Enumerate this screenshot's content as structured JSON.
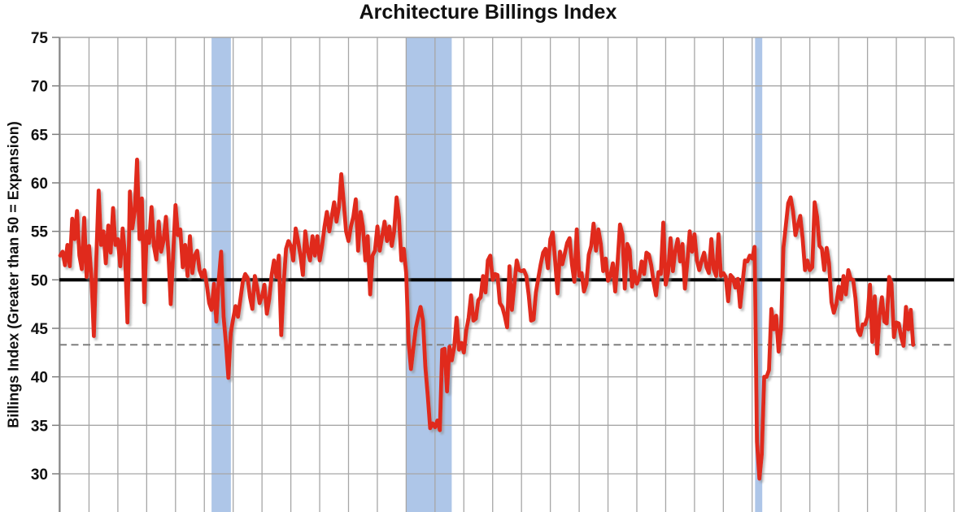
{
  "header": {
    "title": "Architecture Billings Index"
  },
  "chart_data": {
    "type": "line",
    "title": "Architecture Billings Index",
    "xlabel": "",
    "ylabel": "Billings Index (Greater than 50 = Expansion)",
    "ylim": [
      26,
      75
    ],
    "yticks": [
      75,
      70,
      65,
      60,
      55,
      50,
      45,
      40,
      35,
      30
    ],
    "x_axis": {
      "start_year": 1996,
      "end_year": 2027,
      "gridlines_every_years": 1,
      "tick_labels_visible": false
    },
    "grid": true,
    "legend": "none",
    "reference_lines": [
      {
        "name": "expansion-threshold",
        "value": 50,
        "style": "solid",
        "color": "#000000"
      },
      {
        "name": "latest-reading-level",
        "value": 43.3,
        "style": "dashed",
        "color": "#7f7f7f"
      }
    ],
    "recessions": [
      {
        "name": "2001-recession",
        "start": 2001.25,
        "end": 2001.92
      },
      {
        "name": "2007-2009-recession",
        "start": 2008.0,
        "end": 2009.58
      },
      {
        "name": "2020-recession",
        "start": 2020.1,
        "end": 2020.35
      }
    ],
    "colors": {
      "line": "#e0291e",
      "recession_band": "#aec6e8",
      "grid": "#a6a6a6",
      "axis": "#7f7f7f",
      "threshold": "#000000",
      "dashed": "#7f7f7f"
    },
    "series": [
      {
        "name": "Architecture Billings Index",
        "frequency": "monthly",
        "start": "1996-01",
        "end": "2025-08",
        "values_by_year": {
          "1996": [
            52.5,
            52.9,
            51.5,
            53.6,
            51.4,
            56.3,
            54.2,
            57.1,
            52.5,
            51.1,
            56.4,
            50.3
          ],
          "1997": [
            53.5,
            50.3,
            44.2,
            52.0,
            59.2,
            53.6,
            55.0,
            51.7,
            55.6,
            52.8,
            57.4,
            53.6
          ],
          "1998": [
            54.2,
            51.4,
            55.3,
            52.4,
            45.6,
            59.1,
            55.3,
            57.0,
            62.4,
            54.2,
            58.4,
            47.7
          ],
          "1999": [
            55.0,
            53.8,
            57.5,
            53.5,
            52.1,
            56.0,
            52.9,
            54.0,
            56.5,
            53.0,
            47.5,
            52.5
          ],
          "2000": [
            57.7,
            54.6,
            55.2,
            51.3,
            53.6,
            50.4,
            54.5,
            50.7,
            52.5,
            53.0,
            51.0,
            50.3
          ],
          "2001": [
            51.0,
            49.5,
            47.6,
            46.9,
            49.6,
            45.7,
            50.0,
            52.9,
            46.2,
            43.5,
            39.9,
            44.5
          ],
          "2002": [
            46.0,
            47.3,
            46.2,
            48.0,
            49.8,
            50.6,
            50.2,
            48.2,
            47.0,
            50.4,
            49.2,
            47.6
          ],
          "2003": [
            48.3,
            49.5,
            46.5,
            48.0,
            50.5,
            52.0,
            50.3,
            52.5,
            44.3,
            49.5,
            53.2,
            54.0
          ],
          "2004": [
            53.5,
            52.0,
            55.3,
            54.0,
            52.5,
            50.5,
            55.0,
            53.0,
            52.0,
            54.5,
            52.5,
            54.5
          ],
          "2005": [
            52.0,
            53.5,
            55.5,
            57.0,
            55.0,
            56.5,
            58.0,
            56.0,
            57.5,
            60.9,
            58.0,
            55.0
          ],
          "2006": [
            54.0,
            55.5,
            56.5,
            58.3,
            53.0,
            57.0,
            55.5,
            52.0,
            54.5,
            48.5,
            52.5,
            53.0
          ],
          "2007": [
            55.5,
            53.0,
            54.5,
            56.0,
            54.0,
            55.5,
            53.5,
            55.0,
            58.5,
            56.5,
            52.0,
            53.2
          ],
          "2008": [
            50.7,
            43.5,
            40.8,
            43.0,
            45.0,
            46.2,
            47.2,
            45.8,
            41.0,
            38.0,
            34.7,
            35.2
          ],
          "2009": [
            34.8,
            35.5,
            34.5,
            42.8,
            42.9,
            38.5,
            43.1,
            41.7,
            43.1,
            46.1,
            42.8,
            43.5
          ],
          "2010": [
            42.5,
            44.8,
            46.1,
            48.4,
            45.8,
            46.0,
            47.9,
            48.2,
            50.4,
            48.7,
            52.0,
            52.5
          ],
          "2011": [
            50.0,
            50.6,
            50.5,
            47.6,
            47.2,
            46.3,
            45.1,
            51.4,
            46.9,
            49.4,
            52.0,
            51.0
          ],
          "2012": [
            50.9,
            51.0,
            50.4,
            48.4,
            45.8,
            45.9,
            48.7,
            50.2,
            51.6,
            52.8,
            53.2,
            51.2
          ],
          "2013": [
            54.2,
            54.9,
            51.9,
            48.6,
            52.9,
            51.6,
            52.7,
            53.8,
            54.3,
            51.6,
            49.8,
            55.2
          ],
          "2014": [
            50.4,
            50.7,
            48.8,
            49.6,
            52.6,
            53.5,
            55.8,
            53.0,
            55.2,
            53.7,
            50.9,
            52.2
          ],
          "2015": [
            49.9,
            50.4,
            51.7,
            48.8,
            51.9,
            55.7,
            54.7,
            49.1,
            53.7,
            53.1,
            49.3,
            50.9
          ],
          "2016": [
            49.6,
            50.3,
            51.9,
            50.6,
            52.8,
            52.6,
            51.5,
            49.7,
            48.4,
            50.8,
            50.6,
            55.9
          ],
          "2017": [
            49.5,
            50.7,
            54.3,
            50.9,
            53.0,
            54.2,
            51.9,
            53.7,
            49.1,
            51.7,
            55.0,
            52.9
          ],
          "2018": [
            54.7,
            52.0,
            51.0,
            52.0,
            52.8,
            51.3,
            50.7,
            54.2,
            51.1,
            50.4,
            54.7,
            50.4
          ],
          "2019": [
            50.7,
            50.3,
            47.8,
            50.5,
            50.2,
            49.2,
            50.1,
            47.2,
            49.7,
            52.0,
            51.9,
            52.5
          ],
          "2020": [
            52.2,
            53.4,
            33.3,
            29.5,
            32.0,
            40.0,
            40.0,
            40.7,
            47.0,
            44.9,
            46.3,
            42.6
          ],
          "2021": [
            44.9,
            53.3,
            55.6,
            57.9,
            58.5,
            57.1,
            54.6,
            55.6,
            56.6,
            54.3,
            51.0,
            52.0
          ],
          "2022": [
            51.0,
            51.3,
            58.0,
            56.5,
            53.5,
            53.2,
            51.0,
            53.3,
            51.7,
            47.7,
            46.6,
            47.5
          ],
          "2023": [
            49.3,
            48.0,
            50.4,
            48.5,
            51.0,
            50.1,
            50.0,
            48.1,
            44.8,
            44.3,
            45.4,
            45.4
          ],
          "2024": [
            46.2,
            49.5,
            43.6,
            48.3,
            42.4,
            46.4,
            48.2,
            45.7,
            45.5,
            50.3,
            49.6,
            44.1
          ],
          "2025": [
            45.6,
            45.5,
            44.1,
            43.2,
            47.2,
            44.9,
            46.9,
            43.3
          ]
        }
      }
    ]
  }
}
